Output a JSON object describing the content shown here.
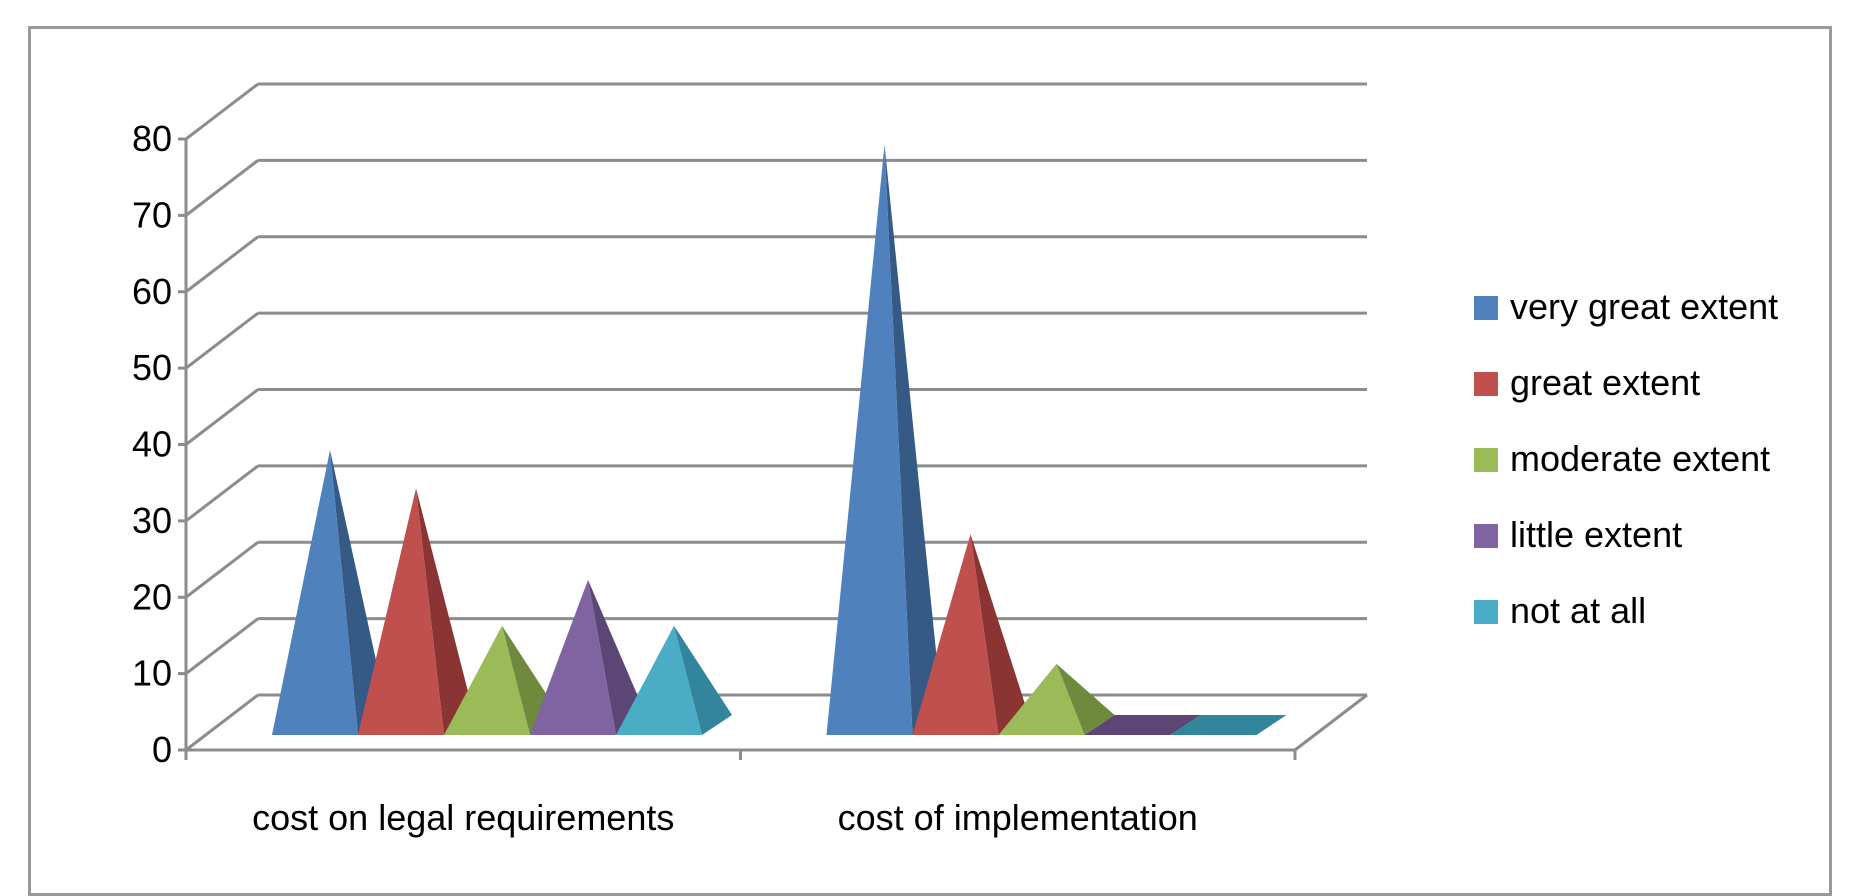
{
  "chart_data": {
    "type": "bar",
    "style": "3d-pyramid",
    "categories": [
      "cost on legal requirements",
      "cost of implementation"
    ],
    "series": [
      {
        "name": "very great extent",
        "values": [
          36,
          76
        ],
        "color": "#4f81bd",
        "dark": "#365a86"
      },
      {
        "name": "great extent",
        "values": [
          31,
          25
        ],
        "color": "#c0504d",
        "dark": "#8a3533"
      },
      {
        "name": "moderate extent",
        "values": [
          13,
          8
        ],
        "color": "#9bbb59",
        "dark": "#6f8a3d"
      },
      {
        "name": "little extent",
        "values": [
          19,
          0
        ],
        "color": "#8064a2",
        "dark": "#5b4676"
      },
      {
        "name": "not at all",
        "values": [
          13,
          0
        ],
        "color": "#4bacc6",
        "dark": "#31859c"
      }
    ],
    "y_ticks": [
      "0",
      "10",
      "20",
      "30",
      "40",
      "50",
      "60",
      "70",
      "80"
    ],
    "ylim": [
      0,
      80
    ],
    "grid": true,
    "legend_position": "right"
  }
}
